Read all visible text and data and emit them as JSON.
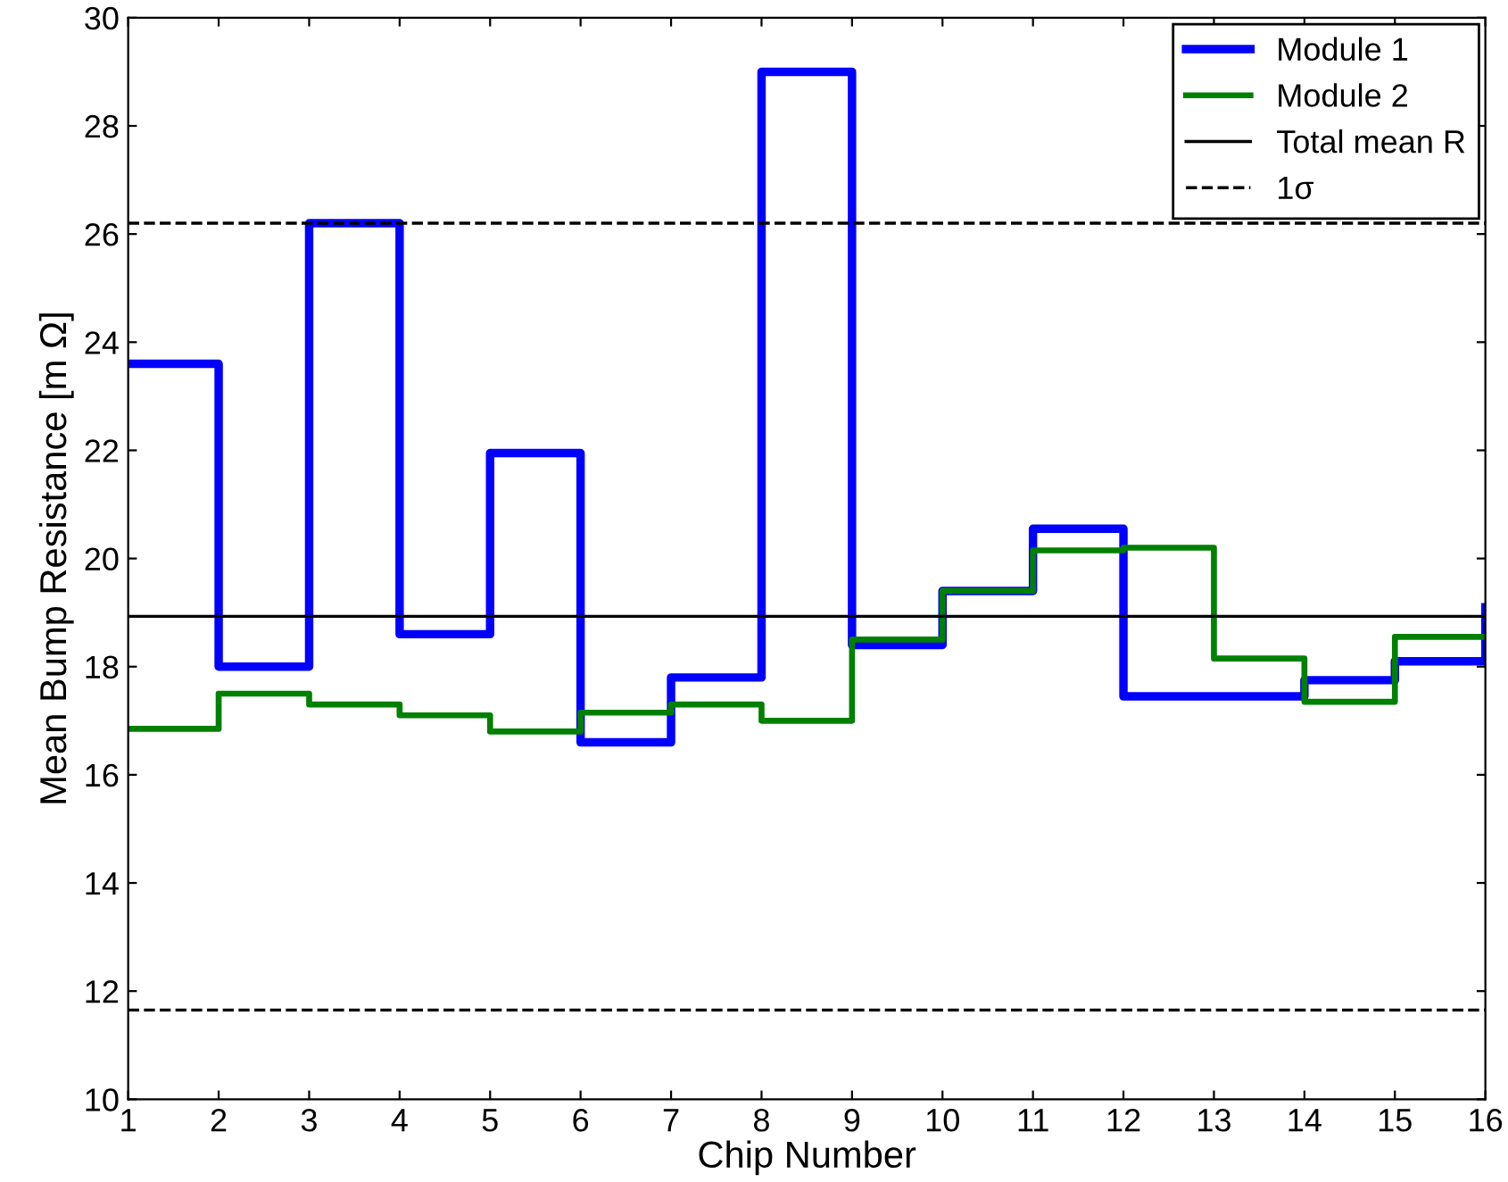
{
  "chart_data": {
    "type": "step",
    "xlabel": "Chip Number",
    "ylabel": "Mean Bump Resistance [m Ω]",
    "x": [
      1,
      2,
      3,
      4,
      5,
      6,
      7,
      8,
      9,
      10,
      11,
      12,
      13,
      14,
      15,
      16
    ],
    "series": [
      {
        "name": "Module 1",
        "color": "#0000ff",
        "values": [
          23.6,
          18.0,
          26.2,
          18.6,
          21.95,
          16.6,
          17.8,
          29.0,
          18.4,
          19.4,
          20.55,
          17.45,
          17.45,
          17.75,
          18.1,
          19.1
        ]
      },
      {
        "name": "Module 2",
        "color": "#008000",
        "values": [
          16.85,
          17.5,
          17.3,
          17.1,
          16.8,
          17.15,
          17.3,
          17.0,
          18.5,
          19.4,
          20.15,
          20.2,
          18.15,
          17.35,
          18.55,
          18.55
        ]
      }
    ],
    "ref_lines": [
      {
        "axis": "y",
        "value": 18.93,
        "label": "Total mean R",
        "color": "#000000",
        "line_style": "solid"
      },
      {
        "axis": "y",
        "value": 26.2,
        "label": "1σ",
        "color": "#000000",
        "line_style": "dashed"
      },
      {
        "axis": "y",
        "value": 11.65,
        "color": "#000000",
        "line_style": "dashed"
      }
    ],
    "xlim": [
      1,
      16
    ],
    "xticks": [
      1,
      2,
      3,
      4,
      5,
      6,
      7,
      8,
      9,
      10,
      11,
      12,
      13,
      14,
      15,
      16
    ],
    "ylim": [
      10,
      30
    ],
    "yticks": [
      10,
      12,
      14,
      16,
      18,
      20,
      22,
      24,
      26,
      28,
      30
    ],
    "grid": false,
    "legend": "top right"
  }
}
